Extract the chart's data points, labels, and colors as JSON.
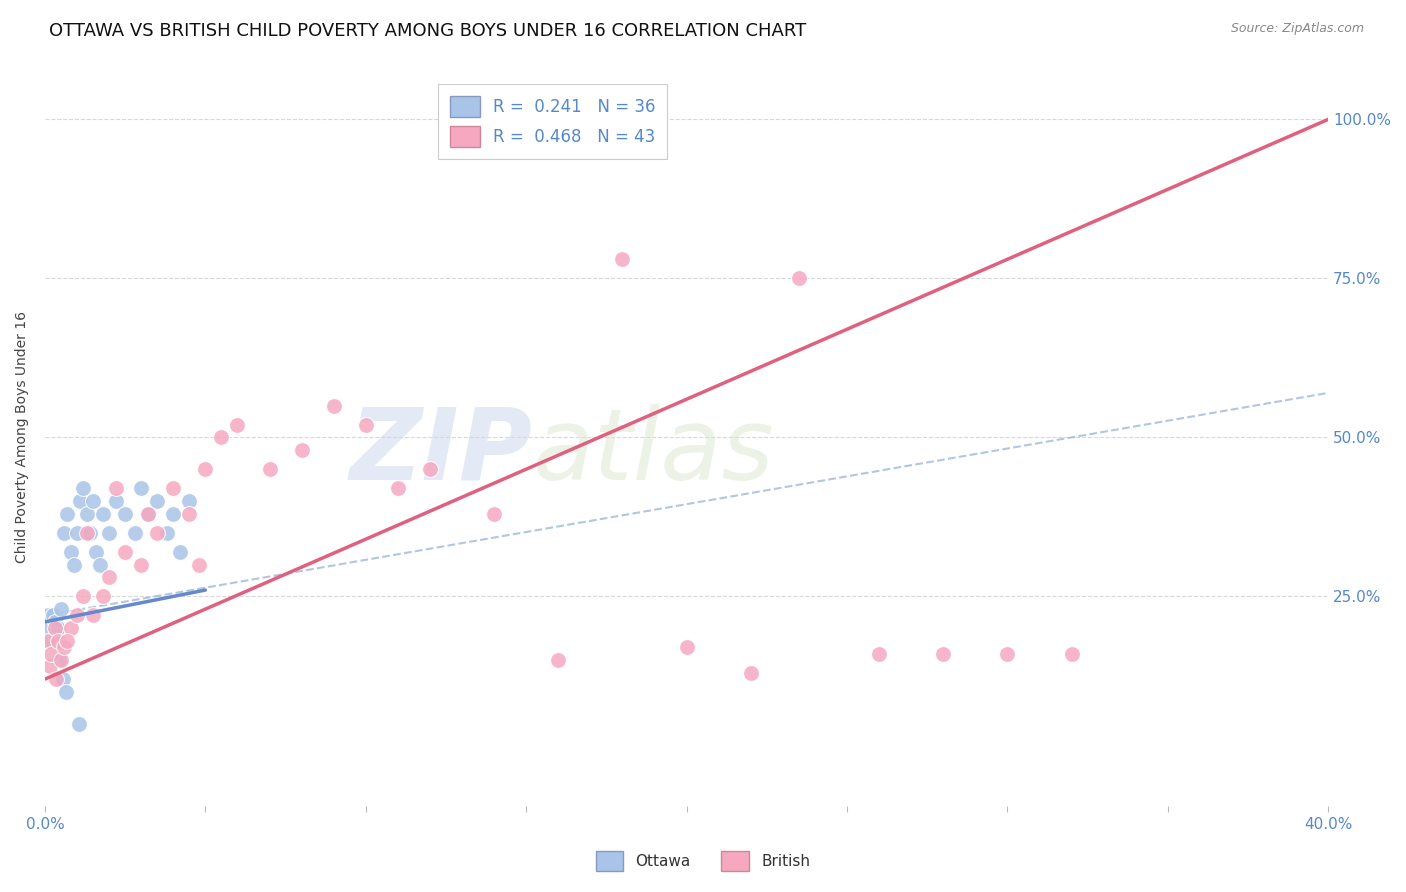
{
  "title": "OTTAWA VS BRITISH CHILD POVERTY AMONG BOYS UNDER 16 CORRELATION CHART",
  "source": "Source: ZipAtlas.com",
  "ylabel": "Child Poverty Among Boys Under 16",
  "xlim": [
    0.0,
    40.0
  ],
  "ylim": [
    -8.0,
    108.0
  ],
  "yticks": [
    0.0,
    25.0,
    50.0,
    75.0,
    100.0
  ],
  "ytick_labels": [
    "",
    "25.0%",
    "50.0%",
    "75.0%",
    "100.0%"
  ],
  "ottawa_R": 0.241,
  "ottawa_N": 36,
  "british_R": 0.468,
  "british_N": 43,
  "ottawa_color": "#a8c4e8",
  "british_color": "#f5a8c0",
  "trendline_ottawa_color": "#6688cc",
  "trendline_british_color": "#e06080",
  "dashed_line_color": "#a0b8d8",
  "background_color": "#ffffff",
  "watermark_zip": "ZIP",
  "watermark_atlas": "atlas",
  "title_fontsize": 13,
  "ottawa_points_x": [
    0.1,
    0.15,
    0.2,
    0.25,
    0.3,
    0.35,
    0.4,
    0.5,
    0.6,
    0.7,
    0.8,
    0.9,
    1.0,
    1.1,
    1.2,
    1.3,
    1.4,
    1.5,
    1.6,
    1.7,
    1.8,
    2.0,
    2.2,
    2.5,
    2.8,
    3.0,
    3.2,
    3.5,
    3.8,
    4.0,
    4.2,
    4.5,
    0.45,
    0.55,
    0.65,
    1.05
  ],
  "ottawa_points_y": [
    22,
    20,
    18,
    22,
    21,
    19,
    20,
    23,
    35,
    38,
    32,
    30,
    35,
    40,
    42,
    38,
    35,
    40,
    32,
    30,
    38,
    35,
    40,
    38,
    35,
    42,
    38,
    40,
    35,
    38,
    32,
    40,
    15,
    12,
    10,
    5
  ],
  "british_points_x": [
    0.1,
    0.15,
    0.2,
    0.3,
    0.4,
    0.5,
    0.6,
    0.8,
    1.0,
    1.2,
    1.5,
    1.8,
    2.0,
    2.5,
    3.0,
    3.5,
    4.0,
    4.5,
    5.0,
    5.5,
    6.0,
    7.0,
    8.0,
    9.0,
    10.0,
    11.0,
    12.0,
    14.0,
    16.0,
    18.0,
    20.0,
    22.0,
    23.5,
    26.0,
    28.0,
    30.0,
    32.0,
    1.3,
    2.2,
    3.2,
    4.8,
    0.35,
    0.7
  ],
  "british_points_y": [
    18,
    14,
    16,
    20,
    18,
    15,
    17,
    20,
    22,
    25,
    22,
    25,
    28,
    32,
    30,
    35,
    42,
    38,
    45,
    50,
    52,
    45,
    48,
    55,
    52,
    42,
    45,
    38,
    15,
    78,
    17,
    13,
    75,
    16,
    16,
    16,
    16,
    35,
    42,
    38,
    30,
    12,
    18
  ],
  "ottawa_trendline_x": [
    0.0,
    5.0
  ],
  "ottawa_trendline_y": [
    21.0,
    26.0
  ],
  "british_trendline_x": [
    0.0,
    40.0
  ],
  "british_trendline_y": [
    12.0,
    100.0
  ],
  "dashed_trendline_x": [
    0.0,
    40.0
  ],
  "dashed_trendline_y": [
    22.0,
    57.0
  ],
  "grid_color": "#d8d8d8",
  "tick_color": "#5588cc"
}
